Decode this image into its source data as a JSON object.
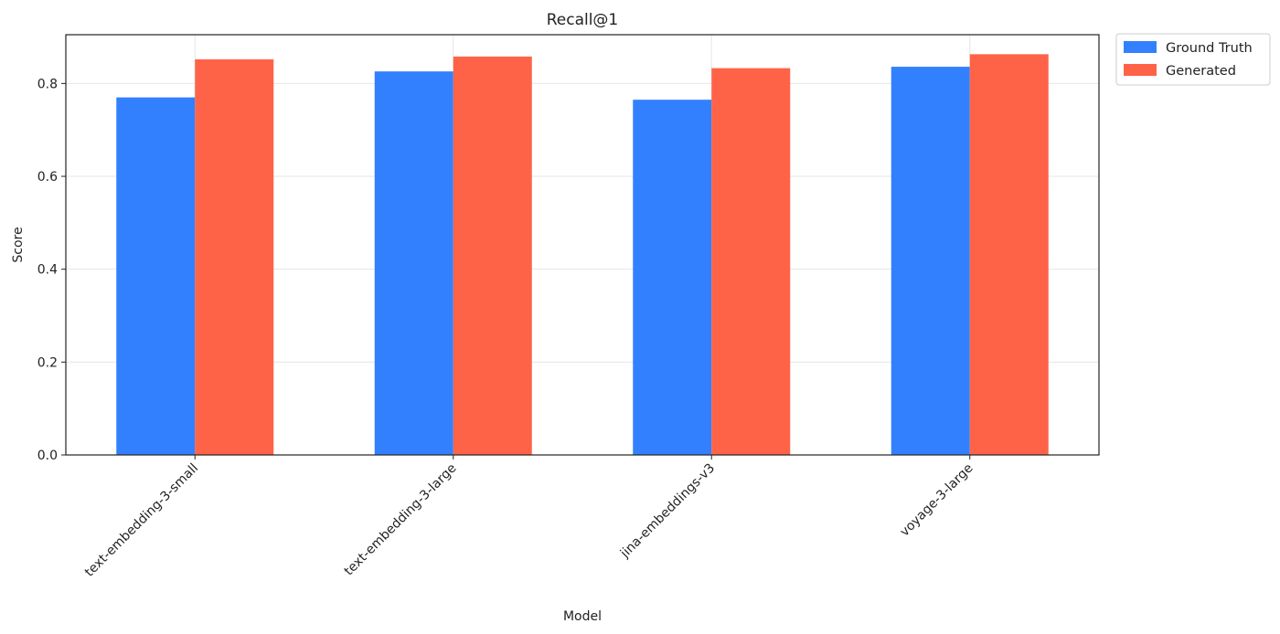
{
  "chart_data": {
    "type": "bar",
    "title": "Recall@1",
    "xlabel": "Model",
    "ylabel": "Score",
    "categories": [
      "text-embedding-3-small",
      "text-embedding-3-large",
      "jina-embeddings-v3",
      "voyage-3-large"
    ],
    "series": [
      {
        "name": "Ground Truth",
        "color": "#3380ff",
        "values": [
          0.77,
          0.826,
          0.765,
          0.836
        ]
      },
      {
        "name": "Generated",
        "color": "#ff6347",
        "values": [
          0.852,
          0.858,
          0.833,
          0.863
        ]
      }
    ],
    "ylim": [
      0,
      0.905
    ],
    "yticks": [
      "0.0",
      "0.2",
      "0.4",
      "0.6",
      "0.8"
    ],
    "grid": true,
    "legend_position": "outside-top-right"
  }
}
